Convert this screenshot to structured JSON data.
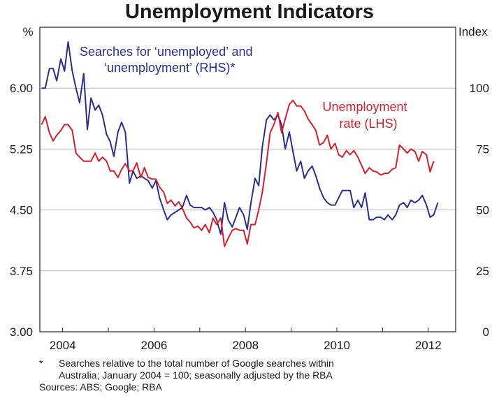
{
  "chart_data": {
    "type": "line",
    "title": "Unemployment Indicators",
    "y_left": {
      "unit": "%",
      "ticks": [
        "3.00",
        "3.75",
        "4.50",
        "5.25",
        "6.00"
      ],
      "ylim": [
        3.0,
        6.75
      ]
    },
    "y_right": {
      "unit": "Index",
      "ticks": [
        "0",
        "25",
        "50",
        "75",
        "100"
      ],
      "ylim": [
        0,
        125
      ]
    },
    "x": {
      "ticks": [
        "2004",
        "2006",
        "2008",
        "2010",
        "2012"
      ],
      "tick_values": [
        2004,
        2006,
        2008,
        2010,
        2012
      ],
      "xlim": [
        2003.5,
        2012.6
      ]
    },
    "grid": true,
    "series": [
      {
        "name": "Searches for ‘unemployed’ and ‘unemployment’ (RHS)*",
        "axis": "right",
        "color": "#2b2f8f",
        "points": [
          [
            2003.54,
            100
          ],
          [
            2003.62,
            100
          ],
          [
            2003.71,
            108
          ],
          [
            2003.79,
            108
          ],
          [
            2003.87,
            103
          ],
          [
            2003.96,
            112
          ],
          [
            2004.04,
            107
          ],
          [
            2004.12,
            119
          ],
          [
            2004.21,
            107
          ],
          [
            2004.29,
            100
          ],
          [
            2004.37,
            94
          ],
          [
            2004.46,
            106
          ],
          [
            2004.54,
            83
          ],
          [
            2004.62,
            96
          ],
          [
            2004.71,
            91
          ],
          [
            2004.79,
            93
          ],
          [
            2004.87,
            89
          ],
          [
            2004.96,
            81
          ],
          [
            2005.04,
            78
          ],
          [
            2005.12,
            72
          ],
          [
            2005.21,
            82
          ],
          [
            2005.29,
            86
          ],
          [
            2005.37,
            82
          ],
          [
            2005.46,
            61
          ],
          [
            2005.54,
            66
          ],
          [
            2005.62,
            63
          ],
          [
            2005.71,
            64
          ],
          [
            2005.79,
            63
          ],
          [
            2005.87,
            62
          ],
          [
            2005.96,
            59
          ],
          [
            2006.04,
            62
          ],
          [
            2006.12,
            55
          ],
          [
            2006.21,
            50
          ],
          [
            2006.29,
            46
          ],
          [
            2006.37,
            48
          ],
          [
            2006.46,
            49
          ],
          [
            2006.54,
            50
          ],
          [
            2006.62,
            51
          ],
          [
            2006.71,
            56
          ],
          [
            2006.79,
            52
          ],
          [
            2006.87,
            51
          ],
          [
            2006.96,
            51
          ],
          [
            2007.04,
            51
          ],
          [
            2007.12,
            50
          ],
          [
            2007.21,
            51
          ],
          [
            2007.29,
            49
          ],
          [
            2007.37,
            46
          ],
          [
            2007.46,
            40
          ],
          [
            2007.54,
            53
          ],
          [
            2007.62,
            46
          ],
          [
            2007.71,
            43
          ],
          [
            2007.79,
            47
          ],
          [
            2007.87,
            51
          ],
          [
            2007.96,
            48
          ],
          [
            2008.04,
            42
          ],
          [
            2008.12,
            53
          ],
          [
            2008.21,
            63
          ],
          [
            2008.29,
            60
          ],
          [
            2008.37,
            76
          ],
          [
            2008.46,
            87
          ],
          [
            2008.54,
            89
          ],
          [
            2008.62,
            87
          ],
          [
            2008.71,
            89
          ],
          [
            2008.79,
            85
          ],
          [
            2008.87,
            75
          ],
          [
            2008.96,
            82
          ],
          [
            2009.04,
            74
          ],
          [
            2009.12,
            66
          ],
          [
            2009.21,
            70
          ],
          [
            2009.29,
            63
          ],
          [
            2009.37,
            66
          ],
          [
            2009.46,
            68
          ],
          [
            2009.54,
            64
          ],
          [
            2009.62,
            59
          ],
          [
            2009.71,
            55
          ],
          [
            2009.79,
            53
          ],
          [
            2009.87,
            52
          ],
          [
            2009.96,
            52
          ],
          [
            2010.04,
            55
          ],
          [
            2010.12,
            58
          ],
          [
            2010.21,
            58
          ],
          [
            2010.29,
            58
          ],
          [
            2010.37,
            51
          ],
          [
            2010.46,
            54
          ],
          [
            2010.54,
            51
          ],
          [
            2010.62,
            57
          ],
          [
            2010.71,
            46
          ],
          [
            2010.79,
            46
          ],
          [
            2010.87,
            47
          ],
          [
            2010.96,
            47
          ],
          [
            2011.04,
            46
          ],
          [
            2011.12,
            48
          ],
          [
            2011.21,
            46
          ],
          [
            2011.29,
            48
          ],
          [
            2011.37,
            52
          ],
          [
            2011.46,
            53
          ],
          [
            2011.54,
            51
          ],
          [
            2011.62,
            54
          ],
          [
            2011.71,
            53
          ],
          [
            2011.79,
            54
          ],
          [
            2011.87,
            56
          ],
          [
            2011.96,
            52
          ],
          [
            2012.04,
            47
          ],
          [
            2012.12,
            48
          ],
          [
            2012.21,
            53
          ]
        ]
      },
      {
        "name": "Unemployment rate (LHS)",
        "axis": "left",
        "color": "#d4202e",
        "points": [
          [
            2003.54,
            5.55
          ],
          [
            2003.62,
            5.65
          ],
          [
            2003.71,
            5.45
          ],
          [
            2003.79,
            5.35
          ],
          [
            2003.87,
            5.42
          ],
          [
            2003.96,
            5.48
          ],
          [
            2004.04,
            5.55
          ],
          [
            2004.12,
            5.55
          ],
          [
            2004.21,
            5.48
          ],
          [
            2004.29,
            5.2
          ],
          [
            2004.37,
            5.15
          ],
          [
            2004.46,
            5.1
          ],
          [
            2004.54,
            5.1
          ],
          [
            2004.62,
            5.1
          ],
          [
            2004.71,
            5.2
          ],
          [
            2004.79,
            5.1
          ],
          [
            2004.87,
            5.15
          ],
          [
            2004.96,
            5.1
          ],
          [
            2005.04,
            4.98
          ],
          [
            2005.12,
            4.98
          ],
          [
            2005.21,
            4.9
          ],
          [
            2005.29,
            5.0
          ],
          [
            2005.37,
            5.07
          ],
          [
            2005.46,
            4.98
          ],
          [
            2005.54,
            4.98
          ],
          [
            2005.62,
            5.08
          ],
          [
            2005.71,
            4.9
          ],
          [
            2005.79,
            5.02
          ],
          [
            2005.87,
            4.9
          ],
          [
            2005.96,
            4.88
          ],
          [
            2006.04,
            4.88
          ],
          [
            2006.12,
            4.78
          ],
          [
            2006.21,
            4.72
          ],
          [
            2006.29,
            4.58
          ],
          [
            2006.37,
            4.62
          ],
          [
            2006.46,
            4.55
          ],
          [
            2006.54,
            4.6
          ],
          [
            2006.62,
            4.52
          ],
          [
            2006.71,
            4.4
          ],
          [
            2006.79,
            4.35
          ],
          [
            2006.87,
            4.28
          ],
          [
            2006.96,
            4.3
          ],
          [
            2007.04,
            4.25
          ],
          [
            2007.12,
            4.32
          ],
          [
            2007.21,
            4.22
          ],
          [
            2007.29,
            4.4
          ],
          [
            2007.37,
            4.32
          ],
          [
            2007.46,
            4.4
          ],
          [
            2007.54,
            4.05
          ],
          [
            2007.62,
            4.15
          ],
          [
            2007.71,
            4.25
          ],
          [
            2007.79,
            4.27
          ],
          [
            2007.87,
            4.25
          ],
          [
            2007.96,
            4.25
          ],
          [
            2008.04,
            4.08
          ],
          [
            2008.12,
            4.32
          ],
          [
            2008.21,
            4.32
          ],
          [
            2008.29,
            4.5
          ],
          [
            2008.37,
            4.72
          ],
          [
            2008.46,
            5.08
          ],
          [
            2008.54,
            5.45
          ],
          [
            2008.62,
            5.55
          ],
          [
            2008.71,
            5.7
          ],
          [
            2008.79,
            5.45
          ],
          [
            2008.87,
            5.62
          ],
          [
            2008.96,
            5.8
          ],
          [
            2009.04,
            5.85
          ],
          [
            2009.12,
            5.78
          ],
          [
            2009.21,
            5.78
          ],
          [
            2009.29,
            5.72
          ],
          [
            2009.37,
            5.62
          ],
          [
            2009.46,
            5.55
          ],
          [
            2009.54,
            5.48
          ],
          [
            2009.62,
            5.3
          ],
          [
            2009.71,
            5.33
          ],
          [
            2009.79,
            5.42
          ],
          [
            2009.87,
            5.25
          ],
          [
            2009.96,
            5.32
          ],
          [
            2010.04,
            5.18
          ],
          [
            2010.12,
            5.15
          ],
          [
            2010.21,
            5.23
          ],
          [
            2010.29,
            5.18
          ],
          [
            2010.37,
            5.23
          ],
          [
            2010.46,
            5.15
          ],
          [
            2010.54,
            5.05
          ],
          [
            2010.62,
            4.95
          ],
          [
            2010.71,
            5.02
          ],
          [
            2010.79,
            4.98
          ],
          [
            2010.87,
            4.97
          ],
          [
            2010.96,
            4.93
          ],
          [
            2011.04,
            4.95
          ],
          [
            2011.12,
            4.95
          ],
          [
            2011.21,
            5.0
          ],
          [
            2011.29,
            5.02
          ],
          [
            2011.37,
            5.3
          ],
          [
            2011.46,
            5.25
          ],
          [
            2011.54,
            5.2
          ],
          [
            2011.62,
            5.25
          ],
          [
            2011.71,
            5.22
          ],
          [
            2011.79,
            5.1
          ],
          [
            2011.87,
            5.22
          ],
          [
            2011.96,
            5.18
          ],
          [
            2012.04,
            4.97
          ],
          [
            2012.12,
            5.1
          ]
        ]
      }
    ],
    "annotations": {
      "searches_line1": "Searches for ‘unemployed’ and",
      "searches_line2": "‘unemployment’ (RHS)*",
      "rate_line1": "Unemployment",
      "rate_line2": "rate (LHS)"
    }
  },
  "footnote": {
    "marker": "*",
    "line1": "Searches relative to the total number of Google searches within",
    "line2": "Australia; January 2004 = 100; seasonally adjusted by the RBA"
  },
  "sources": "Sources: ABS; Google; RBA"
}
